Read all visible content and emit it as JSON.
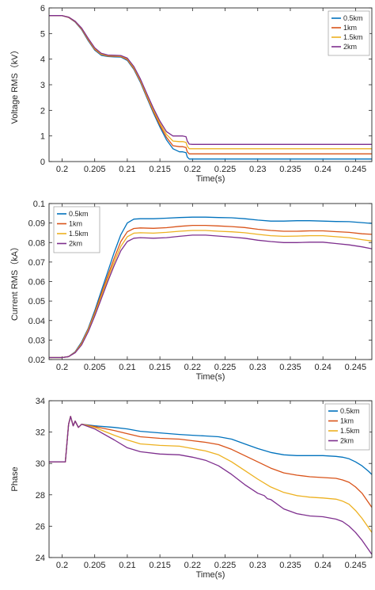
{
  "chart_data": [
    {
      "type": "line",
      "xlabel": "Time(s)",
      "ylabel": "Voltage RMS（kV）",
      "xlim": [
        0.198,
        0.2475
      ],
      "ylim": [
        0,
        6
      ],
      "xticks": [
        0.2,
        0.205,
        0.21,
        0.215,
        0.22,
        0.225,
        0.23,
        0.235,
        0.24,
        0.245
      ],
      "xtick_labels": [
        "0.2",
        "0.205",
        "0.21",
        "0.215",
        "0.22",
        "0.225",
        "0.23",
        "0.235",
        "0.24",
        "0.245"
      ],
      "yticks": [
        0,
        1,
        2,
        3,
        4,
        5,
        6
      ],
      "ytick_labels": [
        "0",
        "1",
        "2",
        "3",
        "4",
        "5",
        "6"
      ],
      "legend_position": "top-right",
      "series": [
        {
          "name": "0.5km",
          "color": "#0072BD",
          "x": [
            0.198,
            0.2,
            0.201,
            0.202,
            0.203,
            0.204,
            0.205,
            0.206,
            0.207,
            0.208,
            0.209,
            0.21,
            0.211,
            0.212,
            0.213,
            0.214,
            0.215,
            0.216,
            0.217,
            0.218,
            0.2185,
            0.219,
            0.2192,
            0.2195,
            0.22,
            0.2475
          ],
          "y": [
            5.7,
            5.7,
            5.63,
            5.45,
            5.15,
            4.72,
            4.35,
            4.15,
            4.1,
            4.09,
            4.08,
            3.95,
            3.6,
            3.1,
            2.5,
            1.9,
            1.35,
            0.85,
            0.5,
            0.38,
            0.38,
            0.35,
            0.18,
            0.1,
            0.1,
            0.1
          ]
        },
        {
          "name": "1km",
          "color": "#D95319",
          "x": [
            0.198,
            0.2,
            0.201,
            0.202,
            0.203,
            0.204,
            0.205,
            0.206,
            0.207,
            0.208,
            0.209,
            0.21,
            0.211,
            0.212,
            0.213,
            0.214,
            0.215,
            0.216,
            0.217,
            0.218,
            0.2185,
            0.219,
            0.2192,
            0.2195,
            0.22,
            0.2475
          ],
          "y": [
            5.7,
            5.7,
            5.63,
            5.46,
            5.17,
            4.75,
            4.38,
            4.18,
            4.12,
            4.11,
            4.1,
            3.98,
            3.63,
            3.14,
            2.54,
            1.95,
            1.42,
            0.95,
            0.62,
            0.58,
            0.58,
            0.55,
            0.38,
            0.3,
            0.3,
            0.3
          ]
        },
        {
          "name": "1.5km",
          "color": "#EDB120",
          "x": [
            0.198,
            0.2,
            0.201,
            0.202,
            0.203,
            0.204,
            0.205,
            0.206,
            0.207,
            0.208,
            0.209,
            0.21,
            0.211,
            0.212,
            0.213,
            0.214,
            0.215,
            0.216,
            0.217,
            0.218,
            0.2185,
            0.219,
            0.2192,
            0.2195,
            0.22,
            0.2475
          ],
          "y": [
            5.7,
            5.7,
            5.64,
            5.47,
            5.19,
            4.78,
            4.41,
            4.2,
            4.14,
            4.13,
            4.12,
            4.01,
            3.67,
            3.18,
            2.59,
            2.01,
            1.5,
            1.06,
            0.8,
            0.78,
            0.78,
            0.75,
            0.6,
            0.5,
            0.5,
            0.5
          ]
        },
        {
          "name": "2km",
          "color": "#7E2F8E",
          "x": [
            0.198,
            0.2,
            0.201,
            0.202,
            0.203,
            0.204,
            0.205,
            0.206,
            0.207,
            0.208,
            0.209,
            0.21,
            0.211,
            0.212,
            0.213,
            0.214,
            0.215,
            0.216,
            0.217,
            0.218,
            0.2185,
            0.219,
            0.2192,
            0.2195,
            0.22,
            0.2475
          ],
          "y": [
            5.7,
            5.7,
            5.64,
            5.48,
            5.21,
            4.81,
            4.44,
            4.23,
            4.16,
            4.15,
            4.14,
            4.04,
            3.71,
            3.23,
            2.65,
            2.08,
            1.58,
            1.17,
            1.0,
            1.0,
            1.0,
            0.97,
            0.8,
            0.68,
            0.67,
            0.67
          ]
        }
      ]
    },
    {
      "type": "line",
      "xlabel": "Time(s)",
      "ylabel": "Current RMS（kA）",
      "xlim": [
        0.198,
        0.2475
      ],
      "ylim": [
        0.02,
        0.1
      ],
      "xticks": [
        0.2,
        0.205,
        0.21,
        0.215,
        0.22,
        0.225,
        0.23,
        0.235,
        0.24,
        0.245
      ],
      "xtick_labels": [
        "0.2",
        "0.205",
        "0.21",
        "0.215",
        "0.22",
        "0.225",
        "0.23",
        "0.235",
        "0.24",
        "0.245"
      ],
      "yticks": [
        0.02,
        0.03,
        0.04,
        0.05,
        0.06,
        0.07,
        0.08,
        0.09,
        0.1
      ],
      "ytick_labels": [
        "0.02",
        "0.03",
        "0.04",
        "0.05",
        "0.06",
        "0.07",
        "0.08",
        "0.09",
        "0.1"
      ],
      "legend_position": "top-left",
      "series": [
        {
          "name": "0.5km",
          "color": "#0072BD",
          "x": [
            0.198,
            0.2,
            0.201,
            0.202,
            0.203,
            0.204,
            0.205,
            0.206,
            0.207,
            0.208,
            0.209,
            0.21,
            0.211,
            0.212,
            0.214,
            0.216,
            0.218,
            0.22,
            0.222,
            0.224,
            0.226,
            0.228,
            0.23,
            0.232,
            0.234,
            0.236,
            0.238,
            0.24,
            0.242,
            0.244,
            0.246,
            0.2475
          ],
          "y": [
            0.021,
            0.021,
            0.0215,
            0.024,
            0.029,
            0.036,
            0.045,
            0.055,
            0.065,
            0.075,
            0.084,
            0.09,
            0.092,
            0.0922,
            0.0922,
            0.0925,
            0.0928,
            0.093,
            0.093,
            0.0928,
            0.0927,
            0.0922,
            0.0915,
            0.091,
            0.091,
            0.0912,
            0.0912,
            0.091,
            0.0908,
            0.0907,
            0.0902,
            0.0898
          ]
        },
        {
          "name": "1km",
          "color": "#D95319",
          "x": [
            0.198,
            0.2,
            0.201,
            0.202,
            0.203,
            0.204,
            0.205,
            0.206,
            0.207,
            0.208,
            0.209,
            0.21,
            0.211,
            0.212,
            0.214,
            0.216,
            0.218,
            0.22,
            0.222,
            0.224,
            0.226,
            0.228,
            0.23,
            0.232,
            0.234,
            0.236,
            0.238,
            0.24,
            0.242,
            0.244,
            0.246,
            0.2475
          ],
          "y": [
            0.021,
            0.021,
            0.0215,
            0.0238,
            0.0285,
            0.0355,
            0.044,
            0.0535,
            0.063,
            0.072,
            0.0805,
            0.0855,
            0.0872,
            0.0875,
            0.0873,
            0.0876,
            0.0883,
            0.0888,
            0.0888,
            0.0885,
            0.0882,
            0.0877,
            0.0868,
            0.0862,
            0.0858,
            0.0858,
            0.086,
            0.086,
            0.0856,
            0.0852,
            0.0845,
            0.0842
          ]
        },
        {
          "name": "1.5km",
          "color": "#EDB120",
          "x": [
            0.198,
            0.2,
            0.201,
            0.202,
            0.203,
            0.204,
            0.205,
            0.206,
            0.207,
            0.208,
            0.209,
            0.21,
            0.211,
            0.212,
            0.214,
            0.216,
            0.218,
            0.22,
            0.222,
            0.224,
            0.226,
            0.228,
            0.23,
            0.232,
            0.234,
            0.236,
            0.238,
            0.24,
            0.242,
            0.244,
            0.246,
            0.2475
          ],
          "y": [
            0.021,
            0.021,
            0.0215,
            0.0237,
            0.028,
            0.035,
            0.0432,
            0.0522,
            0.0615,
            0.07,
            0.078,
            0.083,
            0.0848,
            0.085,
            0.0848,
            0.0852,
            0.0858,
            0.0862,
            0.0862,
            0.0858,
            0.0855,
            0.085,
            0.0842,
            0.0835,
            0.0832,
            0.0833,
            0.0835,
            0.0835,
            0.083,
            0.0825,
            0.0815,
            0.0808
          ]
        },
        {
          "name": "2km",
          "color": "#7E2F8E",
          "x": [
            0.198,
            0.2,
            0.201,
            0.202,
            0.203,
            0.204,
            0.205,
            0.206,
            0.207,
            0.208,
            0.209,
            0.21,
            0.211,
            0.212,
            0.214,
            0.216,
            0.218,
            0.22,
            0.222,
            0.224,
            0.226,
            0.228,
            0.23,
            0.232,
            0.234,
            0.236,
            0.238,
            0.24,
            0.242,
            0.244,
            0.246,
            0.2475
          ],
          "y": [
            0.021,
            0.021,
            0.0215,
            0.0235,
            0.0275,
            0.0342,
            0.0423,
            0.051,
            0.06,
            0.0683,
            0.0758,
            0.0805,
            0.0822,
            0.0825,
            0.0822,
            0.0825,
            0.0832,
            0.0838,
            0.0838,
            0.0833,
            0.0828,
            0.0822,
            0.0812,
            0.0805,
            0.08,
            0.08,
            0.0802,
            0.0802,
            0.0795,
            0.0788,
            0.0778,
            0.0768
          ]
        }
      ]
    },
    {
      "type": "line",
      "xlabel": "Time(s)",
      "ylabel": "Phase",
      "xlim": [
        0.198,
        0.2475
      ],
      "ylim": [
        24,
        34
      ],
      "xticks": [
        0.2,
        0.205,
        0.21,
        0.215,
        0.22,
        0.225,
        0.23,
        0.235,
        0.24,
        0.245
      ],
      "xtick_labels": [
        "0.2",
        "0.205",
        "0.21",
        "0.215",
        "0.22",
        "0.225",
        "0.23",
        "0.235",
        "0.24",
        "0.245"
      ],
      "yticks": [
        24,
        26,
        28,
        30,
        32,
        34
      ],
      "ytick_labels": [
        "24",
        "26",
        "28",
        "30",
        "32",
        "34"
      ],
      "legend_position": "top-right",
      "series": [
        {
          "name": "0.5km",
          "color": "#0072BD",
          "x": [
            0.198,
            0.2,
            0.2005,
            0.201,
            0.2013,
            0.2017,
            0.202,
            0.2025,
            0.203,
            0.205,
            0.208,
            0.21,
            0.212,
            0.215,
            0.218,
            0.22,
            0.222,
            0.224,
            0.226,
            0.228,
            0.23,
            0.232,
            0.234,
            0.236,
            0.238,
            0.24,
            0.242,
            0.243,
            0.244,
            0.245,
            0.246,
            0.247,
            0.2475
          ],
          "y": [
            30.1,
            30.1,
            30.1,
            32.5,
            33.0,
            32.4,
            32.7,
            32.3,
            32.5,
            32.4,
            32.3,
            32.2,
            32.05,
            31.95,
            31.85,
            31.8,
            31.75,
            31.7,
            31.55,
            31.25,
            30.95,
            30.7,
            30.55,
            30.5,
            30.5,
            30.5,
            30.45,
            30.4,
            30.3,
            30.1,
            29.85,
            29.5,
            29.3
          ]
        },
        {
          "name": "1km",
          "color": "#D95319",
          "x": [
            0.198,
            0.2,
            0.2005,
            0.201,
            0.2013,
            0.2017,
            0.202,
            0.2025,
            0.203,
            0.205,
            0.208,
            0.21,
            0.212,
            0.215,
            0.218,
            0.22,
            0.222,
            0.224,
            0.226,
            0.228,
            0.23,
            0.232,
            0.234,
            0.236,
            0.238,
            0.24,
            0.242,
            0.243,
            0.244,
            0.245,
            0.246,
            0.247,
            0.2475
          ],
          "y": [
            30.1,
            30.1,
            30.1,
            32.5,
            33.0,
            32.4,
            32.7,
            32.3,
            32.5,
            32.35,
            32.1,
            31.9,
            31.7,
            31.6,
            31.55,
            31.45,
            31.35,
            31.2,
            30.9,
            30.5,
            30.1,
            29.7,
            29.4,
            29.25,
            29.15,
            29.1,
            29.05,
            28.95,
            28.8,
            28.5,
            28.1,
            27.5,
            27.2
          ]
        },
        {
          "name": "1.5km",
          "color": "#EDB120",
          "x": [
            0.198,
            0.2,
            0.2005,
            0.201,
            0.2013,
            0.2017,
            0.202,
            0.2025,
            0.203,
            0.205,
            0.208,
            0.21,
            0.212,
            0.215,
            0.218,
            0.22,
            0.222,
            0.224,
            0.226,
            0.228,
            0.23,
            0.232,
            0.234,
            0.236,
            0.238,
            0.24,
            0.242,
            0.243,
            0.244,
            0.245,
            0.246,
            0.247,
            0.2475
          ],
          "y": [
            30.1,
            30.1,
            30.1,
            32.5,
            33.0,
            32.4,
            32.7,
            32.3,
            32.5,
            32.3,
            31.8,
            31.5,
            31.25,
            31.15,
            31.1,
            30.95,
            30.8,
            30.55,
            30.1,
            29.55,
            29.0,
            28.5,
            28.15,
            27.95,
            27.85,
            27.8,
            27.72,
            27.6,
            27.4,
            27.0,
            26.5,
            25.9,
            25.6
          ]
        },
        {
          "name": "2km",
          "color": "#7E2F8E",
          "x": [
            0.198,
            0.2,
            0.2005,
            0.201,
            0.2013,
            0.2017,
            0.202,
            0.2025,
            0.203,
            0.205,
            0.208,
            0.21,
            0.212,
            0.215,
            0.218,
            0.22,
            0.222,
            0.224,
            0.226,
            0.228,
            0.23,
            0.231,
            0.2315,
            0.232,
            0.234,
            0.236,
            0.238,
            0.24,
            0.242,
            0.243,
            0.244,
            0.245,
            0.246,
            0.247,
            0.2475
          ],
          "y": [
            30.1,
            30.1,
            30.1,
            32.5,
            33.0,
            32.4,
            32.7,
            32.3,
            32.5,
            32.2,
            31.5,
            31.0,
            30.75,
            30.6,
            30.55,
            30.4,
            30.2,
            29.85,
            29.3,
            28.65,
            28.1,
            27.95,
            27.75,
            27.7,
            27.1,
            26.8,
            26.65,
            26.6,
            26.45,
            26.3,
            26.0,
            25.6,
            25.1,
            24.5,
            24.2
          ]
        }
      ]
    }
  ]
}
